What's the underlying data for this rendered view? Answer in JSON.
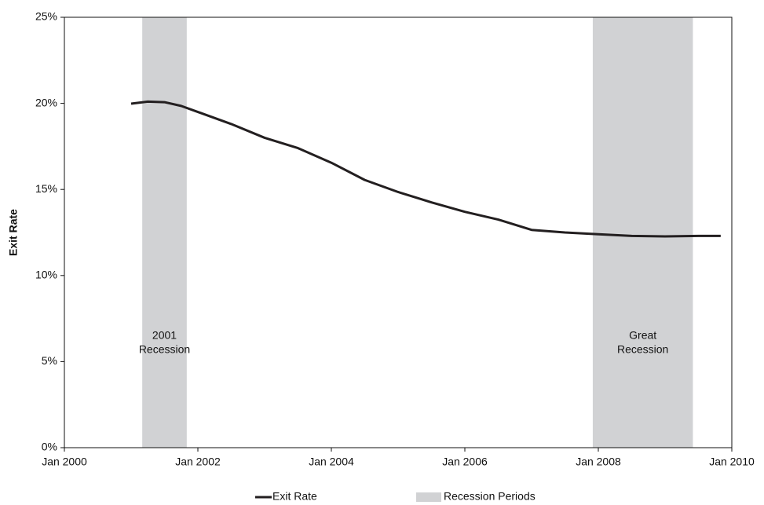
{
  "chart_data": {
    "type": "line",
    "y_label": "Exit Rate",
    "x": [
      "2001-01",
      "2001-04",
      "2001-07",
      "2001-10",
      "2002-01",
      "2002-07",
      "2003-01",
      "2003-07",
      "2004-01",
      "2004-07",
      "2005-01",
      "2005-07",
      "2006-01",
      "2006-07",
      "2007-01",
      "2007-07",
      "2008-01",
      "2008-07",
      "2009-01",
      "2009-07",
      "2009-11"
    ],
    "series": [
      {
        "name": "Exit Rate",
        "color": "#231f20",
        "values": [
          19.98,
          20.1,
          20.07,
          19.85,
          19.5,
          18.8,
          18.0,
          17.4,
          16.55,
          15.55,
          14.85,
          14.25,
          13.7,
          13.25,
          12.65,
          12.5,
          12.4,
          12.3,
          12.27,
          12.3,
          12.3
        ]
      }
    ],
    "recessions": {
      "name": "Recession Periods",
      "color": "#d1d2d4",
      "periods": [
        {
          "start": "2001-03",
          "end": "2001-11",
          "label": [
            "2001",
            "Recession"
          ]
        },
        {
          "start": "2007-12",
          "end": "2009-06",
          "label": [
            "Great",
            "Recession"
          ]
        }
      ]
    },
    "xlim": [
      "2000-01",
      "2010-01"
    ],
    "xticks": [
      {
        "value": "2000-01",
        "label": "Jan 2000"
      },
      {
        "value": "2002-01",
        "label": "Jan 2002"
      },
      {
        "value": "2004-01",
        "label": "Jan 2004"
      },
      {
        "value": "2006-01",
        "label": "Jan 2006"
      },
      {
        "value": "2008-01",
        "label": "Jan 2008"
      },
      {
        "value": "2010-01",
        "label": "Jan 2010"
      }
    ],
    "ylim": [
      0,
      25
    ],
    "yticks": [
      {
        "value": 0,
        "label": "0%"
      },
      {
        "value": 5,
        "label": "5%"
      },
      {
        "value": 10,
        "label": "10%"
      },
      {
        "value": 15,
        "label": "15%"
      },
      {
        "value": 20,
        "label": "20%"
      },
      {
        "value": 25,
        "label": "25%"
      }
    ],
    "grid": false
  }
}
